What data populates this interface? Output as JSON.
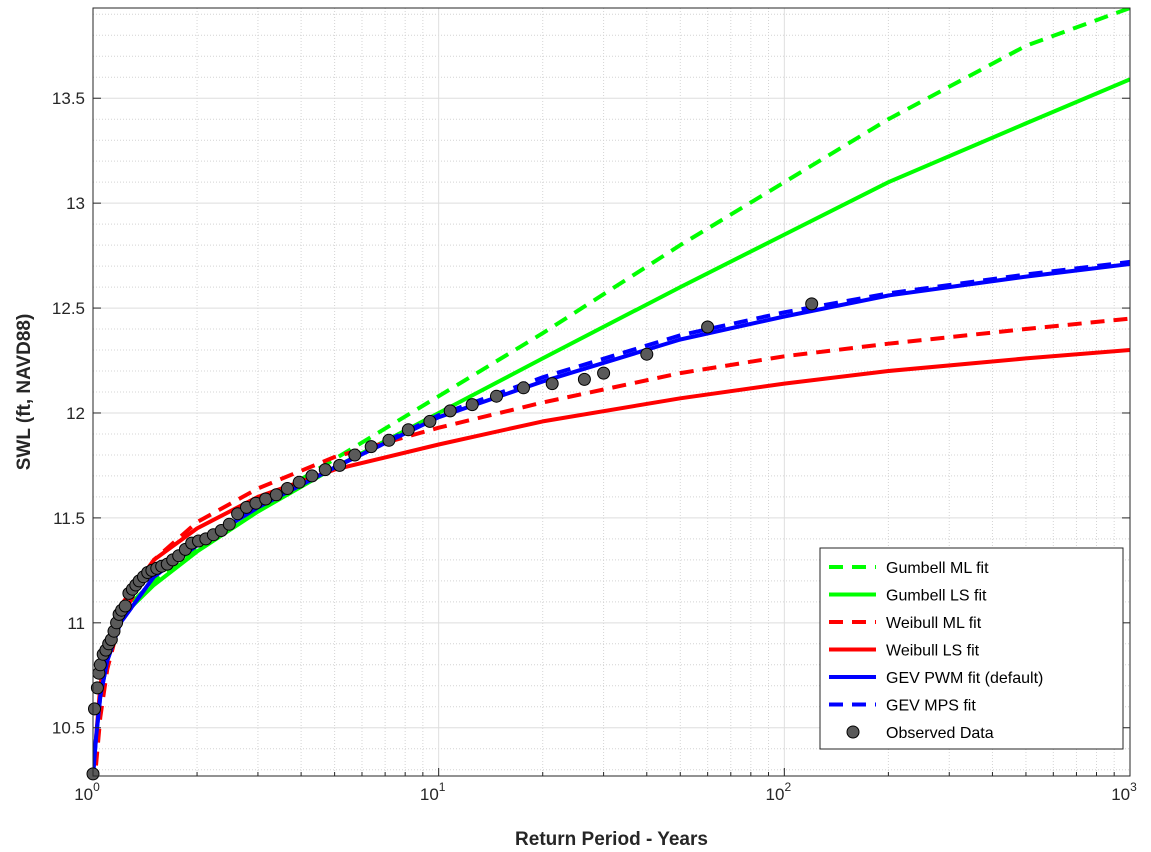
{
  "chart_data": {
    "type": "line",
    "xlabel": "Return Period - Years",
    "ylabel": "SWL (ft, NAVD88)",
    "xscale": "log",
    "xlim": [
      1,
      1000
    ],
    "ylim": [
      10.27,
      13.93
    ],
    "grid": true,
    "minor_grid": true,
    "legend_position": "bottom-right",
    "x_ticks": [
      {
        "value": 1,
        "base": "10",
        "exp": "0"
      },
      {
        "value": 10,
        "base": "10",
        "exp": "1"
      },
      {
        "value": 100,
        "base": "10",
        "exp": "2"
      },
      {
        "value": 1000,
        "base": "10",
        "exp": "3"
      }
    ],
    "y_ticks": [
      {
        "value": 10.5,
        "label": "10.5"
      },
      {
        "value": 11,
        "label": "11"
      },
      {
        "value": 11.5,
        "label": "11.5"
      },
      {
        "value": 12,
        "label": "12"
      },
      {
        "value": 12.5,
        "label": "12.5"
      },
      {
        "value": 13,
        "label": "13"
      },
      {
        "value": 13.5,
        "label": "13.5"
      }
    ],
    "series": [
      {
        "name": "Gumbell ML fit",
        "color": "#00ff00",
        "dash": true,
        "points": [
          [
            1.3,
            11.1
          ],
          [
            1.5,
            11.2
          ],
          [
            2,
            11.36
          ],
          [
            3,
            11.56
          ],
          [
            5,
            11.78
          ],
          [
            10,
            12.08
          ],
          [
            20,
            12.38
          ],
          [
            50,
            12.8
          ],
          [
            100,
            13.1
          ],
          [
            200,
            13.4
          ],
          [
            500,
            13.75
          ],
          [
            1000,
            13.93
          ]
        ]
      },
      {
        "name": "Gumbell LS fit",
        "color": "#00ff00",
        "dash": false,
        "points": [
          [
            1.3,
            11.08
          ],
          [
            1.5,
            11.18
          ],
          [
            2,
            11.34
          ],
          [
            3,
            11.53
          ],
          [
            5,
            11.74
          ],
          [
            10,
            12.0
          ],
          [
            20,
            12.26
          ],
          [
            50,
            12.6
          ],
          [
            100,
            12.85
          ],
          [
            200,
            13.1
          ],
          [
            500,
            13.38
          ],
          [
            1000,
            13.59
          ]
        ]
      },
      {
        "name": "Weibull ML fit",
        "color": "#ff0000",
        "dash": true,
        "points": [
          [
            1.02,
            10.32
          ],
          [
            1.05,
            10.55
          ],
          [
            1.1,
            10.78
          ],
          [
            1.2,
            11.02
          ],
          [
            1.5,
            11.3
          ],
          [
            2,
            11.48
          ],
          [
            3,
            11.64
          ],
          [
            5,
            11.79
          ],
          [
            10,
            11.93
          ],
          [
            20,
            12.05
          ],
          [
            50,
            12.19
          ],
          [
            100,
            12.27
          ],
          [
            200,
            12.33
          ],
          [
            500,
            12.4
          ],
          [
            1000,
            12.45
          ]
        ]
      },
      {
        "name": "Weibull LS fit",
        "color": "#ff0000",
        "dash": false,
        "points": [
          [
            1.02,
            10.45
          ],
          [
            1.05,
            10.7
          ],
          [
            1.1,
            10.9
          ],
          [
            1.2,
            11.08
          ],
          [
            1.5,
            11.3
          ],
          [
            2,
            11.45
          ],
          [
            3,
            11.6
          ],
          [
            5,
            11.73
          ],
          [
            10,
            11.85
          ],
          [
            20,
            11.96
          ],
          [
            50,
            12.07
          ],
          [
            100,
            12.14
          ],
          [
            200,
            12.2
          ],
          [
            500,
            12.26
          ],
          [
            1000,
            12.3
          ]
        ]
      },
      {
        "name": "GEV PWM fit (default)",
        "color": "#0000ff",
        "dash": false,
        "points": [
          [
            1.0,
            10.27
          ],
          [
            1.02,
            10.45
          ],
          [
            1.05,
            10.65
          ],
          [
            1.1,
            10.82
          ],
          [
            1.2,
            11.0
          ],
          [
            1.5,
            11.22
          ],
          [
            2,
            11.37
          ],
          [
            3,
            11.55
          ],
          [
            5,
            11.74
          ],
          [
            10,
            11.98
          ],
          [
            20,
            12.15
          ],
          [
            50,
            12.35
          ],
          [
            100,
            12.46
          ],
          [
            200,
            12.56
          ],
          [
            500,
            12.65
          ],
          [
            1000,
            12.71
          ]
        ]
      },
      {
        "name": "GEV MPS fit",
        "color": "#0000ff",
        "dash": true,
        "points": [
          [
            1.0,
            10.27
          ],
          [
            1.02,
            10.45
          ],
          [
            1.05,
            10.65
          ],
          [
            1.1,
            10.82
          ],
          [
            1.2,
            11.0
          ],
          [
            1.5,
            11.22
          ],
          [
            2,
            11.37
          ],
          [
            3,
            11.55
          ],
          [
            5,
            11.74
          ],
          [
            10,
            11.99
          ],
          [
            20,
            12.17
          ],
          [
            50,
            12.37
          ],
          [
            100,
            12.48
          ],
          [
            200,
            12.57
          ],
          [
            500,
            12.66
          ],
          [
            1000,
            12.72
          ]
        ]
      }
    ],
    "observed": {
      "name": "Observed Data",
      "color": "#5a5a5a",
      "points": [
        [
          1.0,
          10.28
        ],
        [
          1.01,
          10.59
        ],
        [
          1.03,
          10.69
        ],
        [
          1.04,
          10.76
        ],
        [
          1.05,
          10.8
        ],
        [
          1.07,
          10.85
        ],
        [
          1.09,
          10.87
        ],
        [
          1.11,
          10.9
        ],
        [
          1.13,
          10.92
        ],
        [
          1.15,
          10.96
        ],
        [
          1.17,
          11.0
        ],
        [
          1.19,
          11.04
        ],
        [
          1.21,
          11.06
        ],
        [
          1.24,
          11.08
        ],
        [
          1.27,
          11.14
        ],
        [
          1.3,
          11.16
        ],
        [
          1.33,
          11.18
        ],
        [
          1.36,
          11.2
        ],
        [
          1.4,
          11.22
        ],
        [
          1.44,
          11.24
        ],
        [
          1.48,
          11.25
        ],
        [
          1.53,
          11.26
        ],
        [
          1.58,
          11.27
        ],
        [
          1.64,
          11.28
        ],
        [
          1.7,
          11.3
        ],
        [
          1.77,
          11.32
        ],
        [
          1.85,
          11.35
        ],
        [
          1.93,
          11.38
        ],
        [
          2.02,
          11.39
        ],
        [
          2.12,
          11.4
        ],
        [
          2.23,
          11.42
        ],
        [
          2.35,
          11.44
        ],
        [
          2.48,
          11.47
        ],
        [
          2.62,
          11.52
        ],
        [
          2.78,
          11.55
        ],
        [
          2.96,
          11.57
        ],
        [
          3.16,
          11.59
        ],
        [
          3.39,
          11.61
        ],
        [
          3.65,
          11.64
        ],
        [
          3.95,
          11.67
        ],
        [
          4.3,
          11.7
        ],
        [
          4.7,
          11.73
        ],
        [
          5.17,
          11.75
        ],
        [
          5.72,
          11.8
        ],
        [
          6.38,
          11.84
        ],
        [
          7.18,
          11.87
        ],
        [
          8.17,
          11.92
        ],
        [
          9.43,
          11.96
        ],
        [
          10.8,
          12.01
        ],
        [
          12.5,
          12.04
        ],
        [
          14.7,
          12.08
        ],
        [
          17.6,
          12.12
        ],
        [
          21.3,
          12.14
        ],
        [
          26.4,
          12.16
        ],
        [
          30.0,
          12.19
        ],
        [
          40.0,
          12.28
        ],
        [
          60.0,
          12.41
        ],
        [
          120.0,
          12.52
        ]
      ]
    }
  }
}
